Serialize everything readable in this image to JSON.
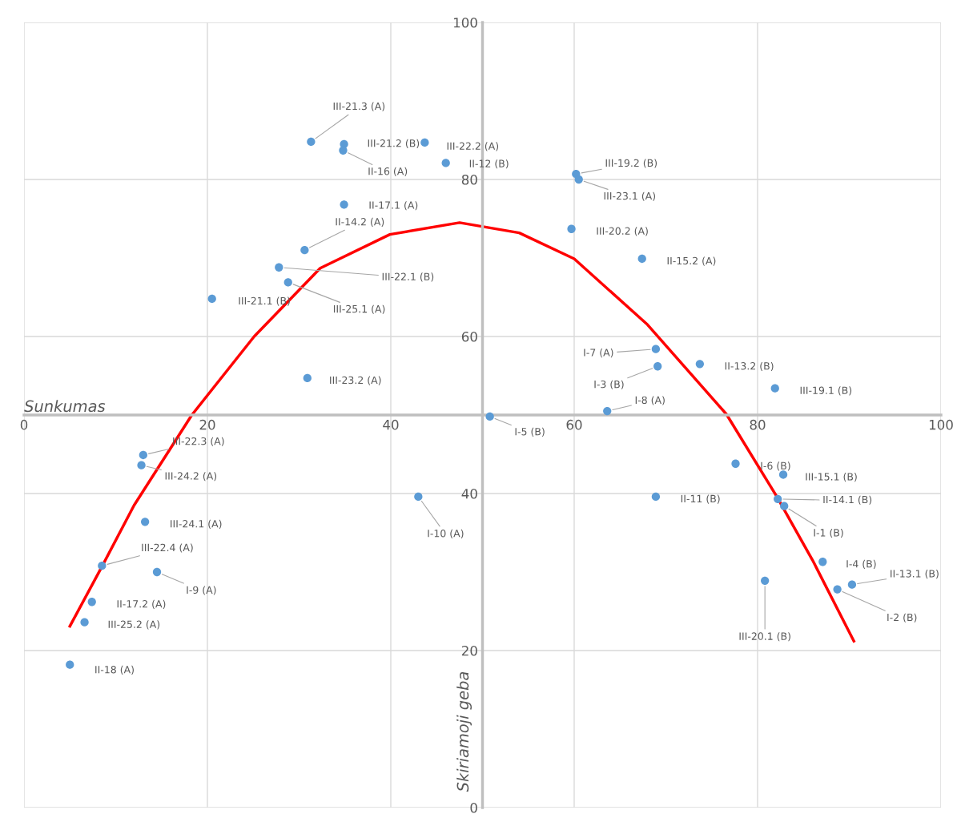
{
  "chart_data": {
    "type": "scatter",
    "xlabel": "Sunkumas",
    "ylabel": "Skiriamoji geba",
    "xlim": [
      0,
      100
    ],
    "ylim": [
      0,
      100
    ],
    "xticks": [
      0,
      20,
      40,
      60,
      80,
      100
    ],
    "yticks": [
      0,
      20,
      40,
      60,
      80,
      100
    ],
    "grid": true,
    "marker": "circle",
    "series": [
      {
        "color": "#5b9bd5",
        "x": [
          31.3,
          34.9,
          34.8,
          43.7,
          46.0,
          34.9,
          30.6,
          27.8,
          28.8,
          20.5,
          30.9,
          60.2,
          60.5,
          59.7,
          67.4,
          68.9,
          69.1,
          73.7,
          81.9,
          63.6,
          50.8,
          43.0,
          68.9,
          77.6,
          82.8,
          82.2,
          82.9,
          87.1,
          90.3,
          88.7,
          80.8,
          13.0,
          12.8,
          13.2,
          8.5,
          14.5,
          7.4,
          6.6,
          5.0
        ],
        "values": [
          84.8,
          84.5,
          83.7,
          84.7,
          82.1,
          76.8,
          71.0,
          68.8,
          66.9,
          64.8,
          54.7,
          80.7,
          80.0,
          73.7,
          69.9,
          58.4,
          56.2,
          56.5,
          53.4,
          50.5,
          49.8,
          39.6,
          39.6,
          43.8,
          42.4,
          39.3,
          38.4,
          31.3,
          28.4,
          27.8,
          28.9,
          44.9,
          43.6,
          36.4,
          30.8,
          30.0,
          26.2,
          23.6,
          18.2
        ]
      },
      {
        "type": "line",
        "color": "#ff0000",
        "marker": "none",
        "line_style": "solid",
        "x": [
          5.0,
          8.5,
          12.0,
          18.3,
          25.1,
          32.3,
          39.9,
          47.5,
          54.0,
          60.0,
          68.0,
          76.6,
          82.1,
          86.0,
          90.5
        ],
        "values": [
          23.1,
          30.7,
          38.5,
          50.0,
          60.0,
          68.7,
          73.0,
          74.5,
          73.2,
          69.9,
          61.5,
          50.1,
          39.6,
          31.5,
          21.2
        ]
      }
    ],
    "annotations": [
      {
        "text": "III-21.3 (A)",
        "x": 31.3,
        "y": 84.8
      },
      {
        "text": "III-21.2 (B)",
        "x": 34.9,
        "y": 84.5
      },
      {
        "text": "II-16 (A)",
        "x": 34.8,
        "y": 83.7
      },
      {
        "text": "III-22.2 (A)",
        "x": 43.7,
        "y": 84.7
      },
      {
        "text": "II-12 (B)",
        "x": 46.0,
        "y": 82.1
      },
      {
        "text": "II-17.1 (A)",
        "x": 34.9,
        "y": 76.8
      },
      {
        "text": "II-14.2 (A)",
        "x": 30.6,
        "y": 71.0
      },
      {
        "text": "III-22.1 (B)",
        "x": 27.8,
        "y": 68.8
      },
      {
        "text": "III-25.1 (A)",
        "x": 28.8,
        "y": 66.9
      },
      {
        "text": "III-21.1 (B)",
        "x": 20.5,
        "y": 64.8
      },
      {
        "text": "III-23.2 (A)",
        "x": 30.9,
        "y": 54.7
      },
      {
        "text": "III-19.2 (B)",
        "x": 60.2,
        "y": 80.7
      },
      {
        "text": "III-23.1 (A)",
        "x": 60.5,
        "y": 80.0
      },
      {
        "text": "III-20.2 (A)",
        "x": 59.7,
        "y": 73.7
      },
      {
        "text": "II-15.2 (A)",
        "x": 67.4,
        "y": 69.9
      },
      {
        "text": "I-7 (A)",
        "x": 68.9,
        "y": 58.4
      },
      {
        "text": "I-3 (B)",
        "x": 69.1,
        "y": 56.2
      },
      {
        "text": "II-13.2 (B)",
        "x": 73.7,
        "y": 56.5
      },
      {
        "text": "III-19.1 (B)",
        "x": 81.9,
        "y": 53.4
      },
      {
        "text": "I-8 (A)",
        "x": 63.6,
        "y": 50.5
      },
      {
        "text": "I-5 (B)",
        "x": 50.8,
        "y": 49.8
      },
      {
        "text": "I-10 (A)",
        "x": 43.0,
        "y": 39.6
      },
      {
        "text": "II-11 (B)",
        "x": 68.9,
        "y": 39.6
      },
      {
        "text": "I-6 (B)",
        "x": 77.6,
        "y": 43.8
      },
      {
        "text": "III-15.1 (B)",
        "x": 82.8,
        "y": 42.4
      },
      {
        "text": "II-14.1 (B)",
        "x": 82.2,
        "y": 39.3
      },
      {
        "text": "I-1 (B)",
        "x": 82.9,
        "y": 38.4
      },
      {
        "text": "I-4 (B)",
        "x": 87.1,
        "y": 31.3
      },
      {
        "text": "II-13.1 (B)",
        "x": 90.3,
        "y": 28.4
      },
      {
        "text": "I-2 (B)",
        "x": 88.7,
        "y": 27.8
      },
      {
        "text": "III-20.1 (B)",
        "x": 80.8,
        "y": 28.9
      },
      {
        "text": "III-22.3 (A)",
        "x": 13.0,
        "y": 44.9
      },
      {
        "text": "III-24.2 (A)",
        "x": 12.8,
        "y": 43.6
      },
      {
        "text": "III-24.1 (A)",
        "x": 13.2,
        "y": 36.4
      },
      {
        "text": "III-22.4 (A)",
        "x": 8.5,
        "y": 30.8
      },
      {
        "text": "I-9 (A)",
        "x": 14.5,
        "y": 30.0
      },
      {
        "text": "II-17.2 (A)",
        "x": 7.4,
        "y": 26.2
      },
      {
        "text": "III-25.2 (A)",
        "x": 6.6,
        "y": 23.6
      },
      {
        "text": "II-18 (A)",
        "x": 5.0,
        "y": 18.2
      }
    ]
  }
}
